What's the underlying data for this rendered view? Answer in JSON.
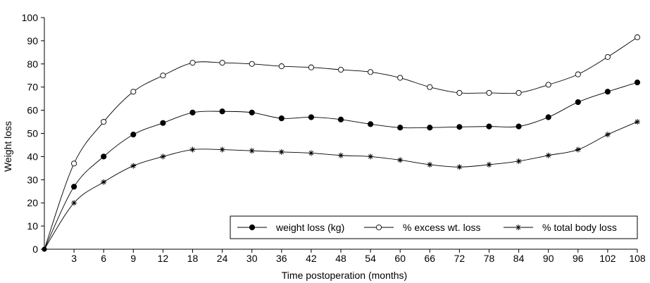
{
  "chart_data": {
    "type": "line",
    "xlabel": "Time postoperation (months)",
    "ylabel": "Weight loss",
    "ylim": [
      0,
      100
    ],
    "y_ticks": [
      "0",
      "10",
      "20",
      "30",
      "40",
      "50",
      "60",
      "70",
      "80",
      "90",
      "100"
    ],
    "categories": [
      "0",
      "3",
      "6",
      "9",
      "12",
      "18",
      "24",
      "30",
      "36",
      "42",
      "48",
      "54",
      "60",
      "66",
      "72",
      "78",
      "84",
      "90",
      "96",
      "102",
      "108"
    ],
    "x_tick_labels": [
      "3",
      "6",
      "9",
      "12",
      "18",
      "24",
      "30",
      "36",
      "42",
      "48",
      "54",
      "60",
      "66",
      "72",
      "78",
      "84",
      "90",
      "96",
      "102",
      "108"
    ],
    "grid": false,
    "legend_position": "bottom-right",
    "series": [
      {
        "name": "weight loss (kg)",
        "marker": "filled-circle",
        "values": [
          0,
          27,
          40,
          49.5,
          54.5,
          59,
          59.5,
          59,
          56.5,
          57,
          56,
          54,
          52.5,
          52.5,
          52.8,
          53,
          53,
          57,
          63.5,
          68,
          72
        ]
      },
      {
        "name": "% excess wt. loss",
        "marker": "open-circle",
        "values": [
          0,
          37,
          55,
          68,
          75,
          80.5,
          80.5,
          80,
          79,
          78.5,
          77.5,
          76.5,
          74,
          70,
          67.5,
          67.5,
          67.5,
          71,
          75.5,
          83,
          91.5
        ]
      },
      {
        "name": "% total body loss",
        "marker": "star",
        "values": [
          0,
          20,
          29,
          36,
          40,
          43,
          43,
          42.5,
          42,
          41.5,
          40.5,
          40,
          38.5,
          36.5,
          35.5,
          36.5,
          38,
          40.5,
          43,
          49.5,
          55
        ]
      }
    ]
  }
}
